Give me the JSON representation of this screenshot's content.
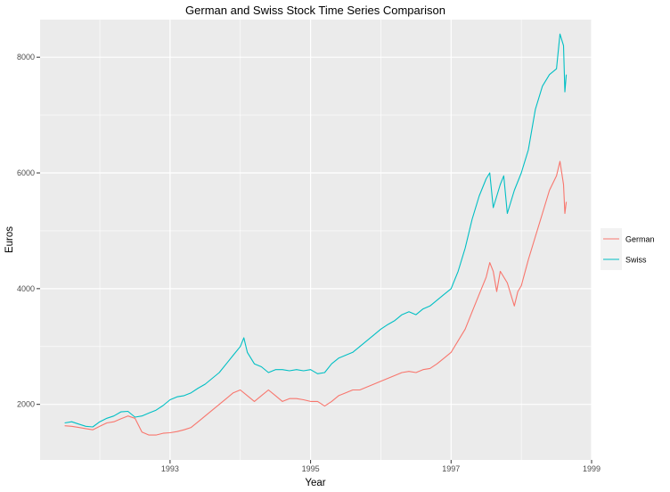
{
  "chart_data": {
    "type": "line",
    "title": "German and Swiss Stock Time Series Comparison",
    "xlabel": "Year",
    "ylabel": "Euros",
    "xlim": [
      1991.15,
      1999.0
    ],
    "ylim": [
      1040,
      8650
    ],
    "x_ticks": [
      1993,
      1995,
      1997,
      1999
    ],
    "y_ticks": [
      2000,
      4000,
      6000,
      8000
    ],
    "grid": true,
    "legend_position": "right",
    "series": [
      {
        "name": "German",
        "color": "#F8766D",
        "x": [
          1991.5,
          1991.6,
          1991.7,
          1991.8,
          1991.9,
          1992.0,
          1992.1,
          1992.2,
          1992.3,
          1992.4,
          1992.5,
          1992.6,
          1992.7,
          1992.8,
          1992.9,
          1993.0,
          1993.1,
          1993.2,
          1993.3,
          1993.4,
          1993.5,
          1993.6,
          1993.7,
          1993.8,
          1993.9,
          1994.0,
          1994.1,
          1994.2,
          1994.3,
          1994.4,
          1994.5,
          1994.6,
          1994.7,
          1994.8,
          1994.9,
          1995.0,
          1995.1,
          1995.2,
          1995.3,
          1995.4,
          1995.5,
          1995.6,
          1995.7,
          1995.8,
          1995.9,
          1996.0,
          1996.1,
          1996.2,
          1996.3,
          1996.4,
          1996.5,
          1996.6,
          1996.7,
          1996.8,
          1996.9,
          1997.0,
          1997.1,
          1997.2,
          1997.3,
          1997.4,
          1997.5,
          1997.55,
          1997.6,
          1997.65,
          1997.7,
          1997.8,
          1997.9,
          1997.95,
          1998.0,
          1998.1,
          1998.2,
          1998.3,
          1998.4,
          1998.5,
          1998.55,
          1998.6,
          1998.62,
          1998.64
        ],
        "values": [
          1630,
          1620,
          1600,
          1580,
          1560,
          1620,
          1680,
          1700,
          1750,
          1800,
          1760,
          1520,
          1470,
          1470,
          1500,
          1510,
          1530,
          1560,
          1600,
          1700,
          1800,
          1900,
          2000,
          2100,
          2200,
          2250,
          2150,
          2050,
          2150,
          2250,
          2150,
          2050,
          2100,
          2100,
          2080,
          2050,
          2050,
          1970,
          2050,
          2150,
          2200,
          2250,
          2250,
          2300,
          2350,
          2400,
          2450,
          2500,
          2550,
          2570,
          2550,
          2600,
          2620,
          2700,
          2800,
          2900,
          3100,
          3300,
          3600,
          3900,
          4200,
          4450,
          4300,
          3950,
          4300,
          4100,
          3700,
          3950,
          4050,
          4500,
          4900,
          5300,
          5700,
          5950,
          6200,
          5800,
          5300,
          5500
        ]
      },
      {
        "name": "Swiss",
        "color": "#00BFC4",
        "x": [
          1991.5,
          1991.6,
          1991.7,
          1991.8,
          1991.9,
          1992.0,
          1992.1,
          1992.2,
          1992.3,
          1992.4,
          1992.5,
          1992.6,
          1992.7,
          1992.8,
          1992.9,
          1993.0,
          1993.1,
          1993.2,
          1993.3,
          1993.4,
          1993.5,
          1993.6,
          1993.7,
          1993.8,
          1993.9,
          1994.0,
          1994.05,
          1994.1,
          1994.2,
          1994.3,
          1994.4,
          1994.5,
          1994.6,
          1994.7,
          1994.8,
          1994.9,
          1995.0,
          1995.1,
          1995.2,
          1995.3,
          1995.4,
          1995.5,
          1995.6,
          1995.7,
          1995.8,
          1995.9,
          1996.0,
          1996.1,
          1996.2,
          1996.3,
          1996.4,
          1996.5,
          1996.6,
          1996.7,
          1996.8,
          1996.9,
          1997.0,
          1997.1,
          1997.2,
          1997.3,
          1997.4,
          1997.5,
          1997.55,
          1997.6,
          1997.7,
          1997.75,
          1997.8,
          1997.9,
          1998.0,
          1998.1,
          1998.2,
          1998.3,
          1998.4,
          1998.5,
          1998.55,
          1998.6,
          1998.62,
          1998.64
        ],
        "values": [
          1680,
          1700,
          1660,
          1620,
          1610,
          1700,
          1760,
          1800,
          1870,
          1880,
          1780,
          1800,
          1850,
          1900,
          1980,
          2080,
          2130,
          2150,
          2200,
          2280,
          2350,
          2450,
          2550,
          2700,
          2850,
          3000,
          3150,
          2900,
          2700,
          2650,
          2550,
          2600,
          2600,
          2580,
          2600,
          2580,
          2600,
          2530,
          2550,
          2700,
          2800,
          2850,
          2900,
          3000,
          3100,
          3200,
          3300,
          3380,
          3450,
          3550,
          3600,
          3550,
          3650,
          3700,
          3800,
          3900,
          4000,
          4300,
          4700,
          5200,
          5600,
          5900,
          6000,
          5400,
          5800,
          5950,
          5300,
          5700,
          6000,
          6400,
          7100,
          7500,
          7700,
          7800,
          8400,
          8200,
          7400,
          7700
        ]
      }
    ]
  }
}
